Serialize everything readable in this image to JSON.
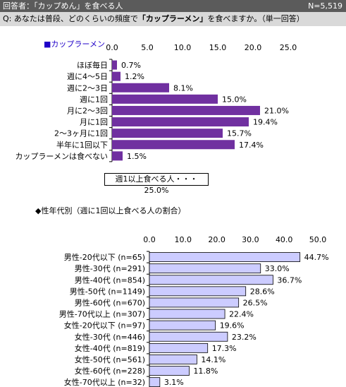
{
  "header": {
    "respondents": "回答者：「カップめん」を食べる人",
    "n": "N=5,519"
  },
  "question": {
    "prefix": "Q: あなたは普段、どのくらいの頻度で",
    "keyword": "「カップラーメン」",
    "suffix": "を食べますか。（単一回答）"
  },
  "note": "週1以上食べる人・・・25.0%",
  "chart_data": [
    {
      "type": "bar",
      "orientation": "horizontal",
      "title": "■カップラーメン",
      "categories": [
        "ほぼ毎日",
        "週に4～5日",
        "週に2～3日",
        "週に1回",
        "月に2～3回",
        "月に1回",
        "2～3ヶ月に1回",
        "半年に1回以下",
        "カップラーメンは食べない"
      ],
      "values": [
        0.7,
        1.2,
        8.1,
        15.0,
        21.0,
        19.4,
        15.7,
        17.4,
        1.5
      ],
      "value_labels": [
        "0.7%",
        "1.2%",
        "8.1%",
        "15.0%",
        "21.0%",
        "19.4%",
        "15.7%",
        "17.4%",
        "1.5%"
      ],
      "xlim": [
        0,
        25
      ],
      "ticks": [
        "0.0",
        "5.0",
        "10.0",
        "15.0",
        "20.0",
        "25.0"
      ],
      "tick_values": [
        0,
        5,
        10,
        15,
        20,
        25
      ],
      "bar_color": "#7030a0",
      "grid": false
    },
    {
      "type": "bar",
      "orientation": "horizontal",
      "title": "◆性年代別（週に1回以上食べる人の割合）",
      "categories": [
        "男性-20代以下 (n=65)",
        "男性-30代 (n=291)",
        "男性-40代 (n=854)",
        "男性-50代 (n=1149)",
        "男性-60代 (n=670)",
        "男性-70代以上 (n=307)",
        "女性-20代以下 (n=97)",
        "女性-30代 (n=446)",
        "女性-40代 (n=819)",
        "女性-50代 (n=561)",
        "女性-60代 (n=228)",
        "女性-70代以上 (n=32)"
      ],
      "values": [
        44.7,
        33.0,
        36.7,
        28.6,
        26.5,
        22.4,
        19.6,
        23.2,
        17.3,
        14.1,
        11.8,
        3.1
      ],
      "value_labels": [
        "44.7%",
        "33.0%",
        "36.7%",
        "28.6%",
        "26.5%",
        "22.4%",
        "19.6%",
        "23.2%",
        "17.3%",
        "14.1%",
        "11.8%",
        "3.1%"
      ],
      "xlim": [
        0,
        50
      ],
      "ticks": [
        "0.0",
        "10.0",
        "20.0",
        "30.0",
        "40.0",
        "50.0"
      ],
      "tick_values": [
        0,
        10,
        20,
        30,
        40,
        50
      ],
      "bar_color": "#ccccff",
      "bar_stroke": "#000000",
      "grid": false
    }
  ]
}
